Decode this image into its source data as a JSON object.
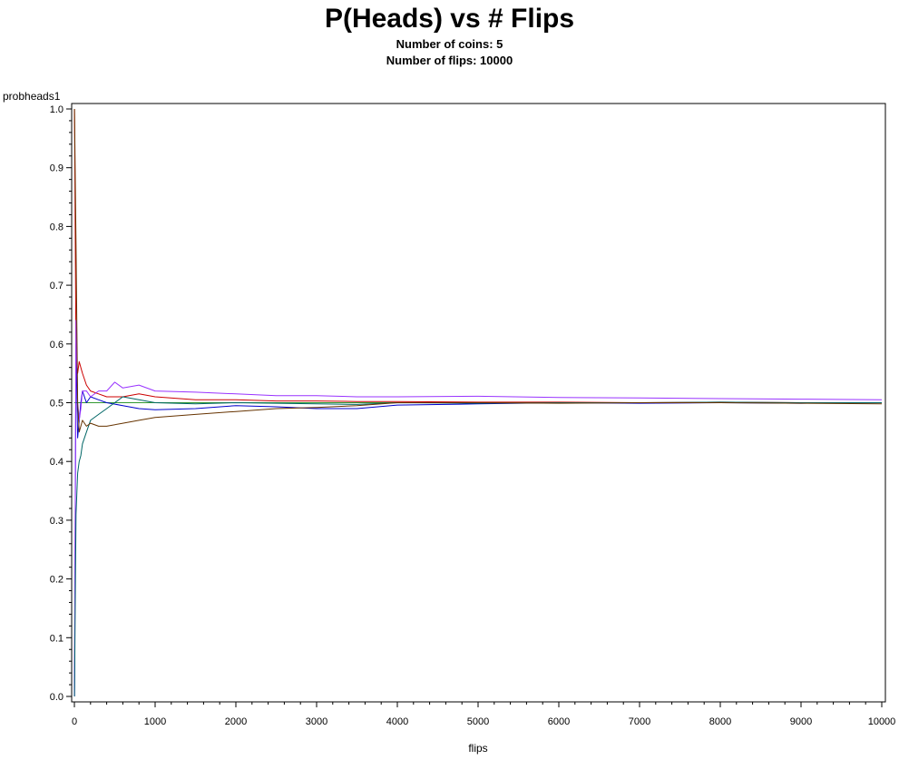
{
  "chart_data": {
    "type": "line",
    "title": "P(Heads) vs # Flips",
    "subtitles": [
      "Number of coins: 5",
      "Number of flips: 10000"
    ],
    "xlabel": "flips",
    "ylabel": "probheads1",
    "xlim": [
      0,
      10000
    ],
    "ylim": [
      0.0,
      1.0
    ],
    "x_ticks": [
      "0",
      "1000",
      "2000",
      "3000",
      "4000",
      "5000",
      "6000",
      "7000",
      "8000",
      "9000",
      "10000"
    ],
    "y_ticks": [
      "0.0",
      "0.1",
      "0.2",
      "0.3",
      "0.4",
      "0.5",
      "0.6",
      "0.7",
      "0.8",
      "0.9",
      "1.0"
    ],
    "grid": false,
    "legend": "none",
    "series": [
      {
        "color": "#0000cc",
        "x": [
          1,
          20,
          40,
          60,
          80,
          100,
          150,
          200,
          300,
          400,
          600,
          800,
          1000,
          1500,
          2000,
          2500,
          3000,
          3500,
          4000,
          5000,
          6000,
          7000,
          8000,
          9000,
          10000
        ],
        "y": [
          0.0,
          0.6,
          0.44,
          0.47,
          0.5,
          0.52,
          0.5,
          0.51,
          0.505,
          0.5,
          0.495,
          0.49,
          0.488,
          0.49,
          0.495,
          0.493,
          0.49,
          0.49,
          0.496,
          0.498,
          0.5,
          0.499,
          0.5,
          0.499,
          0.5
        ]
      },
      {
        "color": "#cc0000",
        "x": [
          1,
          20,
          40,
          60,
          80,
          100,
          150,
          200,
          300,
          400,
          600,
          800,
          1000,
          1500,
          2000,
          2500,
          3000,
          3500,
          4000,
          5000,
          6000,
          7000,
          8000,
          9000,
          10000
        ],
        "y": [
          1.0,
          0.58,
          0.55,
          0.57,
          0.56,
          0.55,
          0.53,
          0.52,
          0.515,
          0.51,
          0.51,
          0.515,
          0.51,
          0.505,
          0.505,
          0.503,
          0.503,
          0.502,
          0.502,
          0.501,
          0.501,
          0.5,
          0.501,
          0.5,
          0.5
        ]
      },
      {
        "color": "#9933ff",
        "x": [
          1,
          20,
          40,
          60,
          80,
          100,
          150,
          200,
          300,
          400,
          500,
          600,
          800,
          1000,
          1500,
          2000,
          2500,
          3000,
          3500,
          4000,
          5000,
          6000,
          7000,
          8000,
          9000,
          10000
        ],
        "y": [
          0.0,
          0.64,
          0.5,
          0.47,
          0.49,
          0.52,
          0.52,
          0.51,
          0.52,
          0.52,
          0.535,
          0.525,
          0.53,
          0.52,
          0.518,
          0.515,
          0.512,
          0.512,
          0.51,
          0.51,
          0.511,
          0.509,
          0.508,
          0.507,
          0.506,
          0.505
        ]
      },
      {
        "color": "#006666",
        "x": [
          1,
          20,
          40,
          60,
          80,
          100,
          150,
          200,
          300,
          400,
          500,
          600,
          800,
          1000,
          1500,
          2000,
          2500,
          3000,
          3500,
          4000,
          5000,
          6000,
          7000,
          8000,
          9000,
          10000
        ],
        "y": [
          0.0,
          0.31,
          0.38,
          0.4,
          0.41,
          0.43,
          0.45,
          0.47,
          0.48,
          0.49,
          0.5,
          0.51,
          0.505,
          0.5,
          0.498,
          0.5,
          0.499,
          0.498,
          0.497,
          0.5,
          0.499,
          0.5,
          0.5,
          0.501,
          0.5,
          0.5
        ]
      },
      {
        "color": "#663300",
        "x": [
          1,
          20,
          40,
          60,
          80,
          100,
          150,
          200,
          300,
          400,
          600,
          800,
          1000,
          1500,
          2000,
          2500,
          3000,
          3500,
          4000,
          5000,
          6000,
          7000,
          8000,
          9000,
          10000
        ],
        "y": [
          1.0,
          0.77,
          0.5,
          0.45,
          0.46,
          0.47,
          0.46,
          0.465,
          0.46,
          0.46,
          0.465,
          0.47,
          0.475,
          0.48,
          0.485,
          0.49,
          0.492,
          0.495,
          0.5,
          0.5,
          0.499,
          0.5,
          0.5,
          0.499,
          0.498
        ]
      }
    ]
  }
}
